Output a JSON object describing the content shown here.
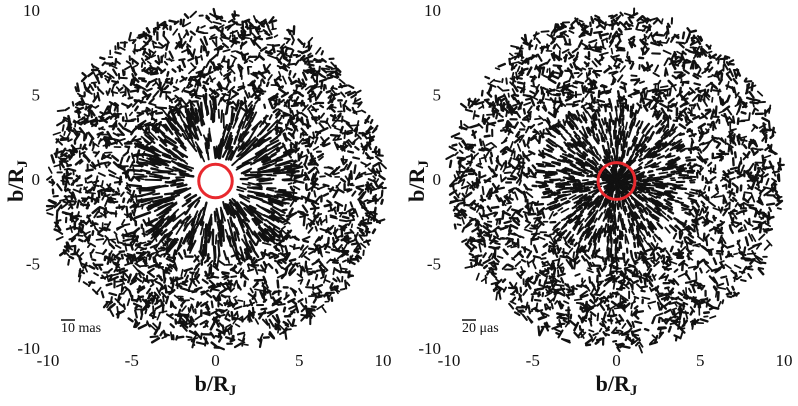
{
  "chart_data": [
    {
      "type": "image",
      "xlabel": "b/R",
      "xlabel_sub": "J",
      "ylabel": "b/R",
      "ylabel_sub": "J",
      "xlim": [
        -10,
        10
      ],
      "ylim": [
        -10,
        10
      ],
      "xticks": [
        -10,
        -5,
        0,
        5,
        10
      ],
      "yticks": [
        -10,
        -5,
        0,
        5,
        10
      ],
      "scale_label": "10 mas",
      "circle": {
        "radius": 1,
        "color": "#e8292e"
      }
    },
    {
      "type": "image",
      "xlabel": "b/R",
      "xlabel_sub": "J",
      "ylabel": "b/R",
      "ylabel_sub": "J",
      "xlim": [
        -10,
        10
      ],
      "ylim": [
        -10,
        10
      ],
      "xticks": [
        -10,
        -5,
        0,
        5,
        10
      ],
      "yticks": [
        -10,
        -5,
        0,
        5,
        10
      ],
      "scale_label": "20 μas",
      "circle": {
        "radius": 1.1,
        "color": "#e8292e"
      }
    }
  ]
}
